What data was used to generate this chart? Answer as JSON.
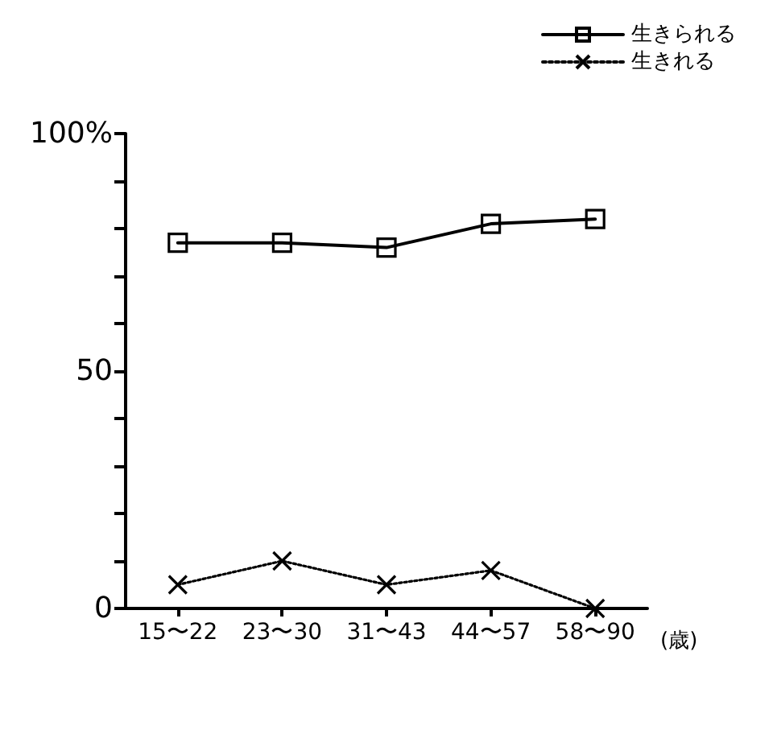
{
  "chart_data": {
    "type": "line",
    "xlabel": "(歳)",
    "categories": [
      "15〜22",
      "23〜30",
      "31〜43",
      "44〜57",
      "58〜90"
    ],
    "series": [
      {
        "name": "生きられる",
        "color": "#000000",
        "marker": "square",
        "line_style": "solid",
        "values": [
          77,
          77,
          76,
          81,
          82
        ]
      },
      {
        "name": "生きれる",
        "color": "#000000",
        "marker": "cross",
        "line_style": "dotted",
        "values": [
          5,
          10,
          5,
          8,
          0
        ]
      }
    ],
    "ylim": [
      0,
      100
    ],
    "yticks": [
      0,
      {
        "value": 10,
        "label": null
      },
      {
        "value": 20,
        "label": null
      },
      {
        "value": 30,
        "label": null
      },
      {
        "value": 40,
        "label": null
      },
      50,
      {
        "value": 60,
        "label": null
      },
      {
        "value": 70,
        "label": null
      },
      {
        "value": 80,
        "label": null
      },
      {
        "value": 90,
        "label": null
      },
      {
        "value": 100,
        "label": "100%"
      }
    ],
    "grid": false,
    "legend": "top right"
  }
}
